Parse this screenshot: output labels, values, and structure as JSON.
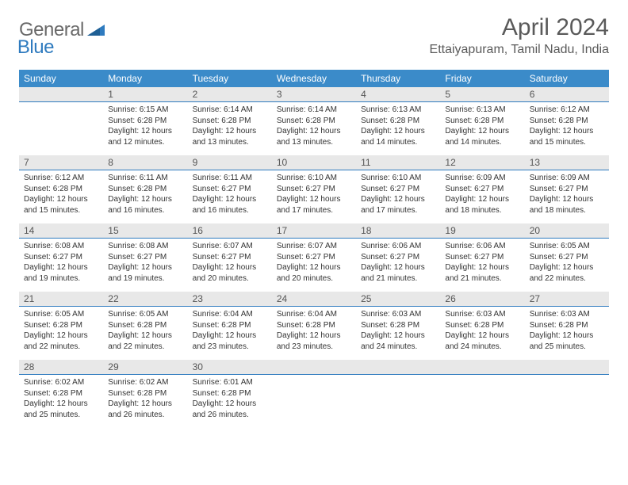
{
  "logo": {
    "text_general": "General",
    "text_blue": "Blue"
  },
  "header": {
    "month_title": "April 2024",
    "location": "Ettaiyapuram, Tamil Nadu, India"
  },
  "weekdays": [
    "Sunday",
    "Monday",
    "Tuesday",
    "Wednesday",
    "Thursday",
    "Friday",
    "Saturday"
  ],
  "colors": {
    "header_bg": "#3b8bc9",
    "header_underline": "#2f7bbf",
    "daynum_bg": "#e8e8e8",
    "text": "#333333",
    "title_text": "#5a5a5a",
    "logo_gray": "#6a6a6a",
    "logo_blue": "#2f7bbf"
  },
  "weeks": [
    [
      {
        "n": "",
        "sr": "",
        "ss": "",
        "dl": ""
      },
      {
        "n": "1",
        "sr": "Sunrise: 6:15 AM",
        "ss": "Sunset: 6:28 PM",
        "dl": "Daylight: 12 hours and 12 minutes."
      },
      {
        "n": "2",
        "sr": "Sunrise: 6:14 AM",
        "ss": "Sunset: 6:28 PM",
        "dl": "Daylight: 12 hours and 13 minutes."
      },
      {
        "n": "3",
        "sr": "Sunrise: 6:14 AM",
        "ss": "Sunset: 6:28 PM",
        "dl": "Daylight: 12 hours and 13 minutes."
      },
      {
        "n": "4",
        "sr": "Sunrise: 6:13 AM",
        "ss": "Sunset: 6:28 PM",
        "dl": "Daylight: 12 hours and 14 minutes."
      },
      {
        "n": "5",
        "sr": "Sunrise: 6:13 AM",
        "ss": "Sunset: 6:28 PM",
        "dl": "Daylight: 12 hours and 14 minutes."
      },
      {
        "n": "6",
        "sr": "Sunrise: 6:12 AM",
        "ss": "Sunset: 6:28 PM",
        "dl": "Daylight: 12 hours and 15 minutes."
      }
    ],
    [
      {
        "n": "7",
        "sr": "Sunrise: 6:12 AM",
        "ss": "Sunset: 6:28 PM",
        "dl": "Daylight: 12 hours and 15 minutes."
      },
      {
        "n": "8",
        "sr": "Sunrise: 6:11 AM",
        "ss": "Sunset: 6:28 PM",
        "dl": "Daylight: 12 hours and 16 minutes."
      },
      {
        "n": "9",
        "sr": "Sunrise: 6:11 AM",
        "ss": "Sunset: 6:27 PM",
        "dl": "Daylight: 12 hours and 16 minutes."
      },
      {
        "n": "10",
        "sr": "Sunrise: 6:10 AM",
        "ss": "Sunset: 6:27 PM",
        "dl": "Daylight: 12 hours and 17 minutes."
      },
      {
        "n": "11",
        "sr": "Sunrise: 6:10 AM",
        "ss": "Sunset: 6:27 PM",
        "dl": "Daylight: 12 hours and 17 minutes."
      },
      {
        "n": "12",
        "sr": "Sunrise: 6:09 AM",
        "ss": "Sunset: 6:27 PM",
        "dl": "Daylight: 12 hours and 18 minutes."
      },
      {
        "n": "13",
        "sr": "Sunrise: 6:09 AM",
        "ss": "Sunset: 6:27 PM",
        "dl": "Daylight: 12 hours and 18 minutes."
      }
    ],
    [
      {
        "n": "14",
        "sr": "Sunrise: 6:08 AM",
        "ss": "Sunset: 6:27 PM",
        "dl": "Daylight: 12 hours and 19 minutes."
      },
      {
        "n": "15",
        "sr": "Sunrise: 6:08 AM",
        "ss": "Sunset: 6:27 PM",
        "dl": "Daylight: 12 hours and 19 minutes."
      },
      {
        "n": "16",
        "sr": "Sunrise: 6:07 AM",
        "ss": "Sunset: 6:27 PM",
        "dl": "Daylight: 12 hours and 20 minutes."
      },
      {
        "n": "17",
        "sr": "Sunrise: 6:07 AM",
        "ss": "Sunset: 6:27 PM",
        "dl": "Daylight: 12 hours and 20 minutes."
      },
      {
        "n": "18",
        "sr": "Sunrise: 6:06 AM",
        "ss": "Sunset: 6:27 PM",
        "dl": "Daylight: 12 hours and 21 minutes."
      },
      {
        "n": "19",
        "sr": "Sunrise: 6:06 AM",
        "ss": "Sunset: 6:27 PM",
        "dl": "Daylight: 12 hours and 21 minutes."
      },
      {
        "n": "20",
        "sr": "Sunrise: 6:05 AM",
        "ss": "Sunset: 6:27 PM",
        "dl": "Daylight: 12 hours and 22 minutes."
      }
    ],
    [
      {
        "n": "21",
        "sr": "Sunrise: 6:05 AM",
        "ss": "Sunset: 6:28 PM",
        "dl": "Daylight: 12 hours and 22 minutes."
      },
      {
        "n": "22",
        "sr": "Sunrise: 6:05 AM",
        "ss": "Sunset: 6:28 PM",
        "dl": "Daylight: 12 hours and 22 minutes."
      },
      {
        "n": "23",
        "sr": "Sunrise: 6:04 AM",
        "ss": "Sunset: 6:28 PM",
        "dl": "Daylight: 12 hours and 23 minutes."
      },
      {
        "n": "24",
        "sr": "Sunrise: 6:04 AM",
        "ss": "Sunset: 6:28 PM",
        "dl": "Daylight: 12 hours and 23 minutes."
      },
      {
        "n": "25",
        "sr": "Sunrise: 6:03 AM",
        "ss": "Sunset: 6:28 PM",
        "dl": "Daylight: 12 hours and 24 minutes."
      },
      {
        "n": "26",
        "sr": "Sunrise: 6:03 AM",
        "ss": "Sunset: 6:28 PM",
        "dl": "Daylight: 12 hours and 24 minutes."
      },
      {
        "n": "27",
        "sr": "Sunrise: 6:03 AM",
        "ss": "Sunset: 6:28 PM",
        "dl": "Daylight: 12 hours and 25 minutes."
      }
    ],
    [
      {
        "n": "28",
        "sr": "Sunrise: 6:02 AM",
        "ss": "Sunset: 6:28 PM",
        "dl": "Daylight: 12 hours and 25 minutes."
      },
      {
        "n": "29",
        "sr": "Sunrise: 6:02 AM",
        "ss": "Sunset: 6:28 PM",
        "dl": "Daylight: 12 hours and 26 minutes."
      },
      {
        "n": "30",
        "sr": "Sunrise: 6:01 AM",
        "ss": "Sunset: 6:28 PM",
        "dl": "Daylight: 12 hours and 26 minutes."
      },
      {
        "n": "",
        "sr": "",
        "ss": "",
        "dl": ""
      },
      {
        "n": "",
        "sr": "",
        "ss": "",
        "dl": ""
      },
      {
        "n": "",
        "sr": "",
        "ss": "",
        "dl": ""
      },
      {
        "n": "",
        "sr": "",
        "ss": "",
        "dl": ""
      }
    ]
  ]
}
